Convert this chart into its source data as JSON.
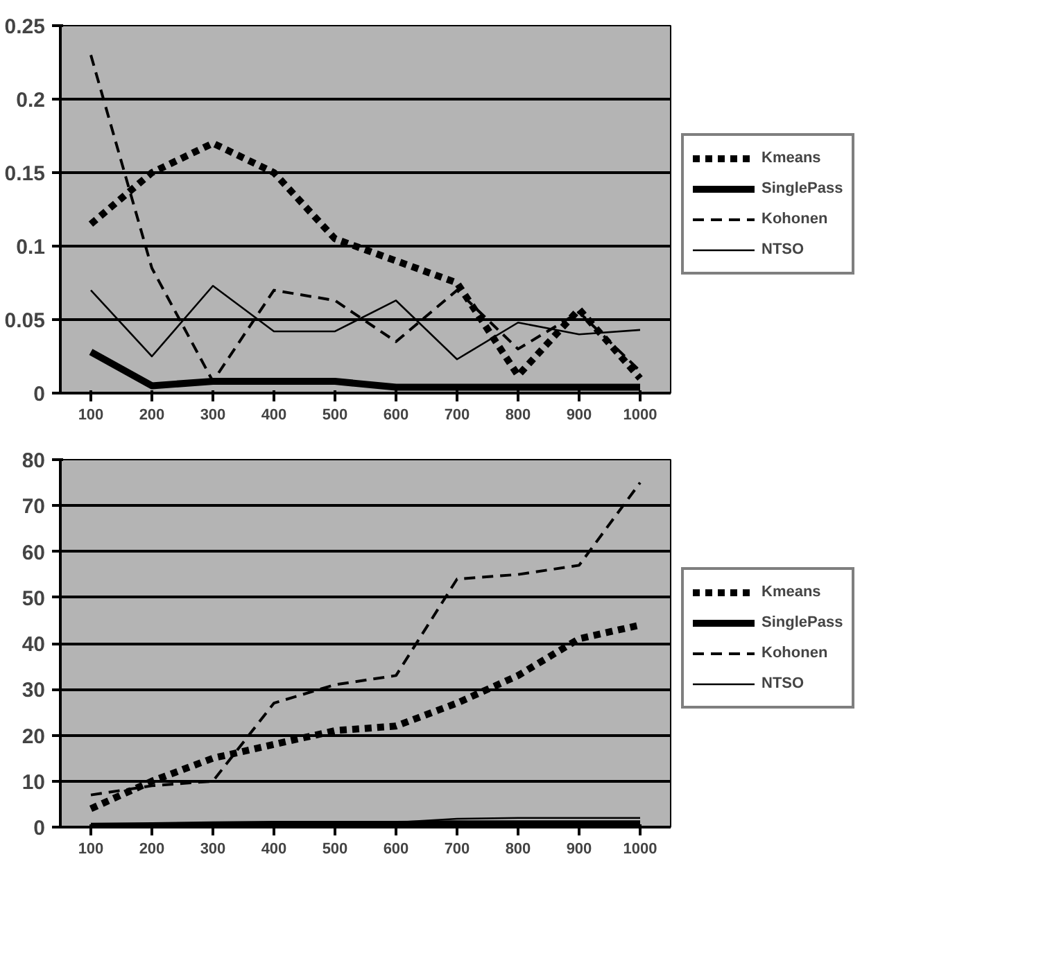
{
  "chart_data": [
    {
      "type": "line",
      "categories": [
        "100",
        "200",
        "300",
        "400",
        "500",
        "600",
        "700",
        "800",
        "900",
        "1000"
      ],
      "ylim": [
        0,
        0.25
      ],
      "yticks": [
        0,
        0.05,
        0.1,
        0.15,
        0.2,
        0.25
      ],
      "grid": "y",
      "legend": "right",
      "marker": "none",
      "series": [
        {
          "name": "Kmeans",
          "color": "#000000",
          "line_style": "dotted",
          "values": [
            0.115,
            0.15,
            0.17,
            0.15,
            0.105,
            0.09,
            0.075,
            0.012,
            0.057,
            0.01
          ]
        },
        {
          "name": "SinglePass",
          "color": "#000000",
          "line_style": "solid",
          "values": [
            0.028,
            0.005,
            0.008,
            0.008,
            0.008,
            0.004,
            0.004,
            0.004,
            0.004,
            0.004
          ]
        },
        {
          "name": "Kohonen",
          "color": "#000000",
          "line_style": "dashed",
          "values": [
            0.23,
            0.085,
            0.008,
            0.07,
            0.063,
            0.035,
            0.07,
            0.03,
            0.055,
            0.015
          ]
        },
        {
          "name": "NTSO",
          "color": "#000000",
          "line_style": "solid",
          "values": [
            0.07,
            0.025,
            0.073,
            0.042,
            0.042,
            0.063,
            0.023,
            0.048,
            0.04,
            0.043
          ]
        }
      ]
    },
    {
      "type": "line",
      "categories": [
        "100",
        "200",
        "300",
        "400",
        "500",
        "600",
        "700",
        "800",
        "900",
        "1000"
      ],
      "ylim": [
        0,
        80
      ],
      "yticks": [
        0,
        10,
        20,
        30,
        40,
        50,
        60,
        70,
        80
      ],
      "grid": "y",
      "legend": "right",
      "marker": "none",
      "series": [
        {
          "name": "Kmeans",
          "color": "#000000",
          "line_style": "dotted",
          "values": [
            4,
            10,
            15,
            18,
            21,
            22,
            27,
            33,
            41,
            44
          ]
        },
        {
          "name": "SinglePass",
          "color": "#000000",
          "line_style": "solid",
          "values": [
            0.2,
            0.3,
            0.5,
            0.6,
            0.6,
            0.6,
            0.7,
            0.7,
            0.7,
            0.7
          ]
        },
        {
          "name": "Kohonen",
          "color": "#000000",
          "line_style": "dashed",
          "values": [
            7,
            9,
            10,
            27,
            31,
            33,
            54,
            55,
            57,
            75
          ]
        },
        {
          "name": "NTSO",
          "color": "#000000",
          "line_style": "solid",
          "values": [
            0.3,
            0.4,
            0.8,
            1,
            1,
            1,
            1.8,
            2,
            2,
            2
          ]
        }
      ]
    }
  ]
}
